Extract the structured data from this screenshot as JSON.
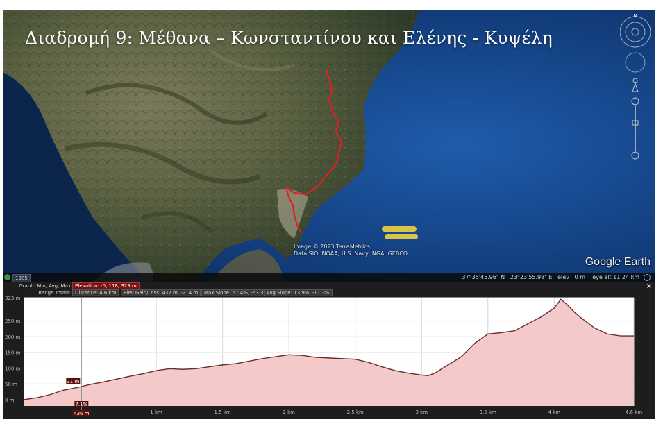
{
  "map": {
    "title": "Διαδρομή 9: Μέθανα – Κωνσταντίνου και Ελένης - Κυψέλη",
    "attribution_line1": "Image © 2023 TerraMetrics",
    "attribution_line2": "Data SIO, NOAA, U.S. Navy, NGA, GEBCO",
    "logo": "Google Earth",
    "compass_label": "N",
    "route_color": "#e02020"
  },
  "statusbar": {
    "year": "1985",
    "lat": "37°35'45.96\" N",
    "lon": "23°23'55.98\" E",
    "elev_label": "elev",
    "elev_value": "0 m",
    "eye_label": "eye alt",
    "eye_value": "11.24 km"
  },
  "profile": {
    "graph_label": "Graph: Min, Avg, Max",
    "elevation_value": "Elevation: -0, 118, 323 m",
    "range_label": "Range Totals:",
    "distance_value": "Distance: 4.6 km",
    "gain_value": "Elev Gain/Loss: 432 m, -214 m",
    "slope_value": "Max Slope: 57.4%, -53.3%",
    "avg_slope_value": "Avg Slope: 13.9%, -11.3%",
    "close_label": "×",
    "cursor_elev": "31 m",
    "cursor_slope": "7.1%",
    "cursor_dist": "436 m"
  },
  "chart_data": {
    "type": "area",
    "x_unit": "km",
    "y_unit": "m",
    "xlim": [
      0,
      4.6
    ],
    "ylim": [
      -20,
      323
    ],
    "y_ticks": [
      "0 m",
      "50 m",
      "100 m",
      "150 m",
      "200 m",
      "250 m",
      "323 m"
    ],
    "y_tick_values": [
      0,
      50,
      100,
      150,
      200,
      250,
      323
    ],
    "x_ticks": [
      "1 km",
      "1.5 km",
      "2 km",
      "2.5 km",
      "3 km",
      "3.5 km",
      "4 km",
      "4.6 km"
    ],
    "x_tick_values": [
      1,
      1.5,
      2,
      2.5,
      3,
      3.5,
      4,
      4.6
    ],
    "cursor_x": 0.436,
    "fill_color": "#f3c3c3",
    "line_color": "#6a2b2b",
    "x": [
      0,
      0.1,
      0.2,
      0.3,
      0.4,
      0.5,
      0.6,
      0.7,
      0.8,
      0.9,
      1.0,
      1.1,
      1.2,
      1.3,
      1.4,
      1.5,
      1.6,
      1.7,
      1.8,
      1.9,
      2.0,
      2.1,
      2.2,
      2.3,
      2.4,
      2.5,
      2.6,
      2.7,
      2.8,
      2.9,
      3.0,
      3.05,
      3.1,
      3.2,
      3.3,
      3.4,
      3.5,
      3.6,
      3.7,
      3.8,
      3.9,
      4.0,
      4.05,
      4.1,
      4.15,
      4.2,
      4.3,
      4.4,
      4.5,
      4.6
    ],
    "y": [
      0,
      6,
      16,
      30,
      38,
      48,
      56,
      65,
      74,
      82,
      92,
      98,
      96,
      98,
      104,
      110,
      114,
      122,
      130,
      136,
      142,
      140,
      134,
      132,
      130,
      128,
      118,
      104,
      92,
      84,
      78,
      76,
      84,
      110,
      136,
      178,
      208,
      212,
      218,
      240,
      262,
      290,
      318,
      300,
      278,
      260,
      228,
      208,
      202,
      202
    ]
  }
}
